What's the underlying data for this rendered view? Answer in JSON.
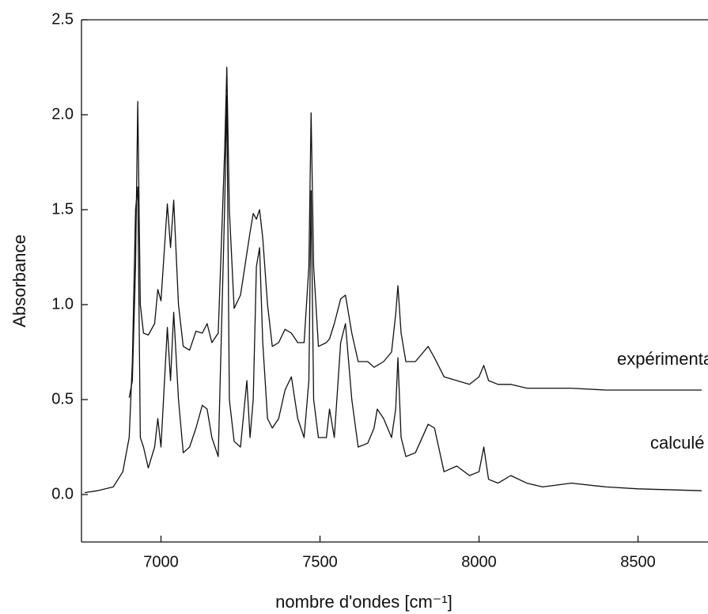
{
  "chart_data": {
    "type": "line",
    "xlabel": "nombre d'ondes [cm⁻¹]",
    "ylabel": "Absorbance",
    "x": [
      6760,
      6800,
      6850,
      6880,
      6900,
      6910,
      6920,
      6927,
      6935,
      6945,
      6960,
      6980,
      6990,
      7000,
      7020,
      7030,
      7040,
      7055,
      7070,
      7090,
      7110,
      7130,
      7145,
      7160,
      7180,
      7200,
      7207,
      7215,
      7230,
      7250,
      7270,
      7280,
      7290,
      7300,
      7310,
      7320,
      7335,
      7350,
      7370,
      7390,
      7410,
      7430,
      7450,
      7465,
      7472,
      7480,
      7495,
      7520,
      7530,
      7545,
      7565,
      7580,
      7600,
      7620,
      7650,
      7670,
      7680,
      7700,
      7725,
      7738,
      7745,
      7755,
      7770,
      7800,
      7840,
      7860,
      7890,
      7930,
      7970,
      8000,
      8015,
      8030,
      8060,
      8100,
      8150,
      8200,
      8290,
      8400,
      8500,
      8700
    ],
    "series": [
      {
        "name": "expérimental",
        "color": "#111111",
        "values": [
          null,
          null,
          null,
          null,
          0.51,
          0.6,
          1.2,
          2.07,
          1.0,
          0.85,
          0.84,
          0.9,
          1.08,
          1.02,
          1.53,
          1.3,
          1.55,
          1.0,
          0.78,
          0.76,
          0.86,
          0.85,
          0.9,
          0.8,
          0.85,
          1.8,
          2.25,
          1.5,
          0.98,
          1.05,
          1.27,
          1.38,
          1.48,
          1.45,
          1.5,
          1.35,
          1.0,
          0.78,
          0.8,
          0.87,
          0.85,
          0.8,
          0.8,
          1.2,
          2.01,
          1.2,
          0.78,
          0.8,
          0.82,
          0.9,
          1.03,
          1.05,
          0.85,
          0.7,
          0.7,
          0.67,
          0.68,
          0.7,
          0.75,
          0.95,
          1.1,
          0.85,
          0.7,
          0.7,
          0.78,
          0.72,
          0.62,
          0.6,
          0.58,
          0.62,
          0.68,
          0.6,
          0.58,
          0.58,
          0.56,
          0.56,
          0.56,
          0.55,
          0.55,
          0.55
        ]
      },
      {
        "name": "calculé",
        "color": "#111111",
        "values": [
          0.01,
          0.02,
          0.04,
          0.12,
          0.3,
          0.7,
          1.5,
          1.62,
          0.3,
          0.25,
          0.14,
          0.25,
          0.4,
          0.25,
          0.88,
          0.6,
          0.96,
          0.5,
          0.22,
          0.25,
          0.35,
          0.47,
          0.45,
          0.3,
          0.2,
          1.5,
          2.1,
          0.5,
          0.28,
          0.25,
          0.6,
          0.3,
          0.5,
          1.2,
          1.3,
          0.8,
          0.4,
          0.35,
          0.4,
          0.55,
          0.62,
          0.4,
          0.3,
          0.6,
          1.6,
          0.5,
          0.3,
          0.3,
          0.45,
          0.3,
          0.8,
          0.9,
          0.5,
          0.25,
          0.27,
          0.35,
          0.45,
          0.4,
          0.3,
          0.45,
          0.72,
          0.3,
          0.2,
          0.22,
          0.37,
          0.35,
          0.12,
          0.15,
          0.1,
          0.12,
          0.25,
          0.08,
          0.06,
          0.1,
          0.06,
          0.04,
          0.06,
          0.04,
          0.03,
          0.02
        ]
      }
    ],
    "xlim": [
      6750,
      8720
    ],
    "ylim": [
      -0.25,
      2.5
    ],
    "xticks": [
      7000,
      7500,
      8000,
      8500
    ],
    "yticks": [
      {
        "value": 0,
        "label": "0.0"
      },
      0.5,
      {
        "value": 1,
        "label": "1.0"
      },
      1.5,
      {
        "value": 2,
        "label": "2.0"
      },
      2.5
    ]
  }
}
